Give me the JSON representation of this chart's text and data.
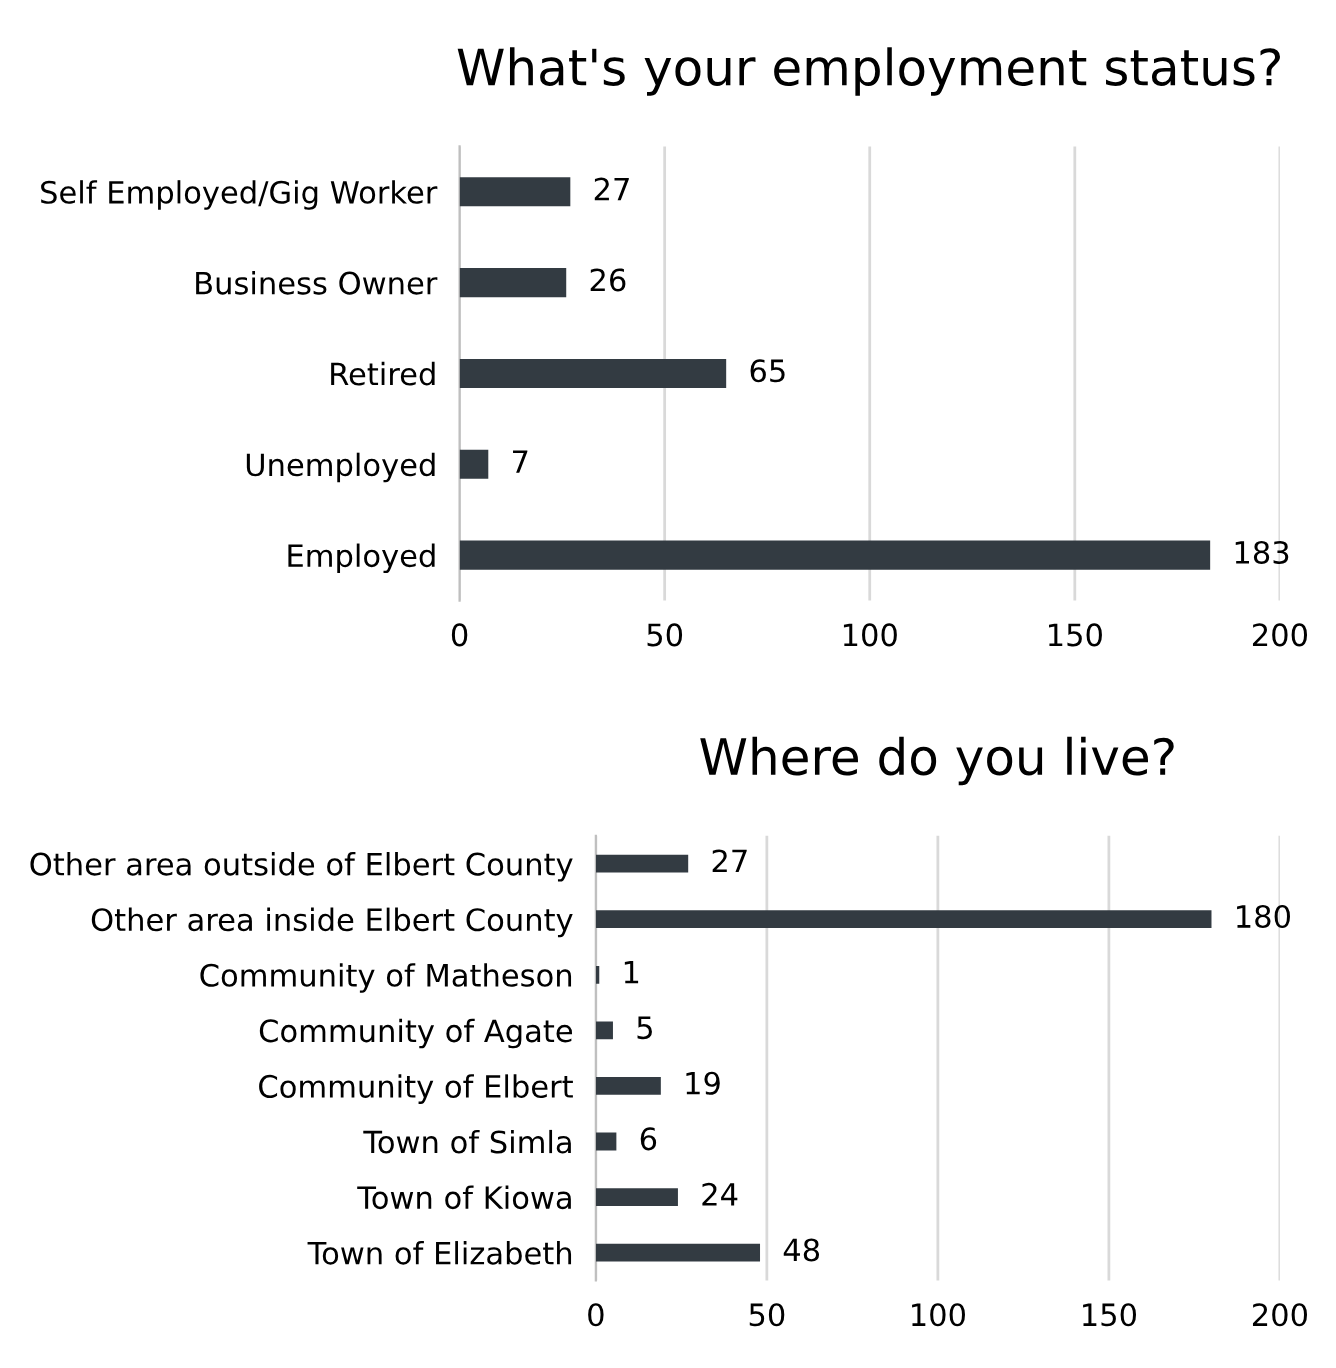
{
  "chart_data": [
    {
      "type": "bar",
      "orientation": "horizontal",
      "title": "What's your employment status?",
      "categories": [
        "Self Employed/Gig Worker",
        "Business Owner",
        "Retired",
        "Unemployed",
        "Employed"
      ],
      "values": [
        27,
        26,
        65,
        7,
        183
      ],
      "color": "#333b42",
      "xlim": [
        0,
        200
      ],
      "xticks": [
        0,
        50,
        100,
        150,
        200
      ],
      "grid": "x",
      "data_labels": true
    },
    {
      "type": "bar",
      "orientation": "horizontal",
      "title": "Where do you live?",
      "categories": [
        "Other area outside of Elbert County",
        "Other area inside Elbert County",
        "Community of Matheson",
        "Community of Agate",
        "Community of Elbert",
        "Town of Simla",
        "Town of Kiowa",
        "Town of Elizabeth"
      ],
      "values": [
        27,
        180,
        1,
        5,
        19,
        6,
        24,
        48
      ],
      "color": "#333b42",
      "xlim": [
        0,
        200
      ],
      "xticks": [
        0,
        50,
        100,
        150,
        200
      ],
      "grid": "x",
      "data_labels": true
    }
  ]
}
